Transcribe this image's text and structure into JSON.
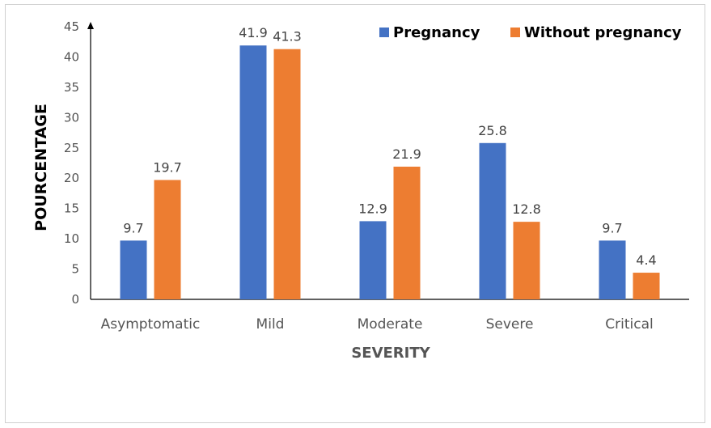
{
  "chart_data": {
    "type": "bar",
    "categories": [
      "Asymptomatic",
      "Mild",
      "Moderate",
      "Severe",
      "Critical"
    ],
    "series": [
      {
        "name": "Pregnancy",
        "values": [
          9.7,
          41.9,
          12.9,
          25.8,
          9.7
        ],
        "color": "#4472C4"
      },
      {
        "name": "Without pregnancy",
        "values": [
          19.7,
          41.3,
          21.9,
          12.8,
          4.4
        ],
        "color": "#ED7D31"
      }
    ],
    "data_labels": [
      [
        "9.7",
        "41.9",
        "12.9",
        "25.8",
        "9.7"
      ],
      [
        "19.7",
        "41.3",
        "21.9",
        "12.8",
        "4.4"
      ]
    ],
    "yticks": [
      "0",
      "5",
      "10",
      "15",
      "20",
      "25",
      "30",
      "35",
      "40",
      "45"
    ],
    "xlabel": "SEVERITY",
    "ylabel": "POURCENTAGE",
    "ylim": [
      0,
      45
    ],
    "grid": false,
    "legend_position": "top-right"
  }
}
